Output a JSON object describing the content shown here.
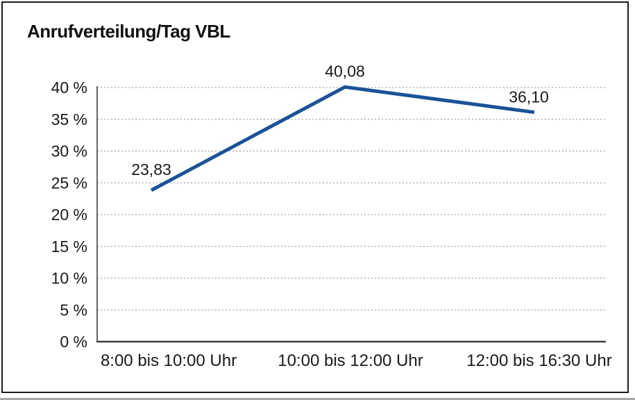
{
  "chart_data": {
    "type": "line",
    "title": "Anrufverteilung/Tag VBL",
    "categories": [
      "8:00 bis 10:00 Uhr",
      "10:00 bis 12:00 Uhr",
      "12:00 bis 16:30 Uhr"
    ],
    "series": [
      {
        "name": "Anrufverteilung/Tag VBL",
        "values": [
          23.83,
          40.08,
          36.1
        ],
        "point_labels": [
          "23,83",
          "40,08",
          "36,10"
        ]
      }
    ],
    "xlabel": "",
    "ylabel": "",
    "ylim": [
      0,
      40
    ],
    "ytick_step": 5,
    "ytick_labels": [
      "0 %",
      "5 %",
      "10 %",
      "15 %",
      "20 %",
      "25 %",
      "30 %",
      "35 %",
      "40 %"
    ],
    "grid": "horizontal-dotted",
    "legend_position": "none",
    "colors": {
      "line": "#1A5298",
      "grid": "#8C8C8C",
      "axis": "#3D3D3D",
      "text": "#1A1A1A",
      "frame_border": "#1C1C1C",
      "background": "#FFFFFF"
    }
  }
}
